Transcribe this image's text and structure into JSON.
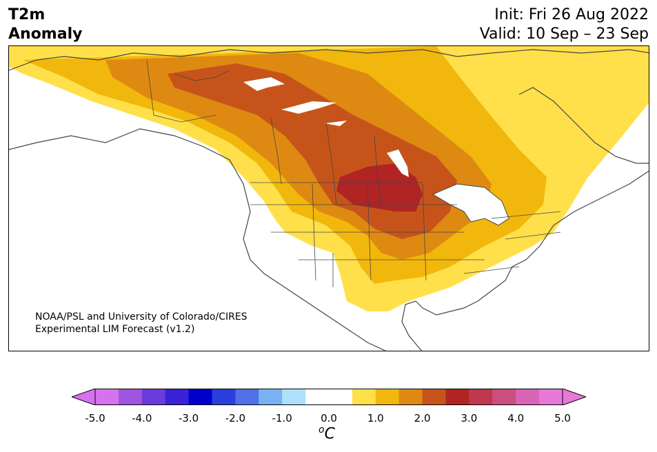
{
  "title": {
    "line1": "T2m",
    "line2": "Anomaly"
  },
  "init": "Init: Fri 26 Aug 2022",
  "valid": "Valid: 10 Sep – 23 Sep",
  "credit": {
    "line1": "NOAA/PSL and University of Colorado/CIRES",
    "line2": "Experimental LIM Forecast (v1.2)"
  },
  "colorbar": {
    "unit_base": "C",
    "unit_sup": "o",
    "ticks": [
      "-5.0",
      "-4.0",
      "-3.0",
      "-2.0",
      "-1.0",
      "0.0",
      "1.0",
      "2.0",
      "3.0",
      "4.0",
      "5.0"
    ],
    "colors": [
      "#d673ec",
      "#a055e0",
      "#6a3cdc",
      "#3a22d6",
      "#0000cc",
      "#2a3fdc",
      "#4f70e6",
      "#78b2f2",
      "#ade0fa",
      "#ffffff",
      "#ffffff",
      "#ffe04a",
      "#f2b70c",
      "#de8a12",
      "#c6541a",
      "#b02424",
      "#c03850",
      "#cc4e80",
      "#da64b6",
      "#e878d8"
    ]
  }
}
